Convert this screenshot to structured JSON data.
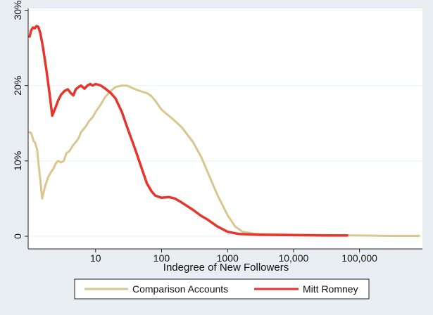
{
  "chart_data": {
    "type": "line",
    "title": "",
    "xlabel": "Indegree of New Followers",
    "ylabel": "",
    "x_scale": "log",
    "xlim": [
      0.95,
      900000
    ],
    "ylim": [
      0,
      30
    ],
    "x_ticks": [
      {
        "value": 10,
        "label": "10"
      },
      {
        "value": 100,
        "label": "100"
      },
      {
        "value": 1000,
        "label": "1000"
      },
      {
        "value": 10000,
        "label": "10,000"
      },
      {
        "value": 100000,
        "label": "100,000"
      }
    ],
    "y_ticks": [
      {
        "value": 0,
        "label": "0"
      },
      {
        "value": 10,
        "label": "10%"
      },
      {
        "value": 20,
        "label": "20%"
      },
      {
        "value": 30,
        "label": "30%"
      }
    ],
    "grid": "horizontal",
    "legend_position": "bottom",
    "colors": {
      "Comparison Accounts": "#d8c78e",
      "Mitt Romney": "#e8352c"
    },
    "series": [
      {
        "name": "Comparison Accounts",
        "points": [
          [
            1.0,
            13.8
          ],
          [
            1.05,
            13.7
          ],
          [
            1.1,
            13.2
          ],
          [
            1.15,
            12.6
          ],
          [
            1.2,
            12.5
          ],
          [
            1.3,
            11.5
          ],
          [
            1.35,
            10.0
          ],
          [
            1.45,
            7.5
          ],
          [
            1.55,
            5.0
          ],
          [
            1.7,
            6.5
          ],
          [
            1.9,
            7.8
          ],
          [
            2.1,
            8.5
          ],
          [
            2.3,
            9.0
          ],
          [
            2.5,
            9.7
          ],
          [
            2.7,
            10.0
          ],
          [
            3.0,
            9.8
          ],
          [
            3.3,
            10.0
          ],
          [
            3.6,
            11.0
          ],
          [
            4.0,
            11.3
          ],
          [
            4.5,
            12.0
          ],
          [
            5.0,
            12.5
          ],
          [
            5.5,
            13.0
          ],
          [
            6.0,
            13.8
          ],
          [
            7.0,
            14.5
          ],
          [
            8.0,
            15.3
          ],
          [
            9.0,
            15.8
          ],
          [
            10.0,
            16.5
          ],
          [
            12.0,
            17.5
          ],
          [
            14.0,
            18.5
          ],
          [
            17.0,
            19.3
          ],
          [
            20.0,
            19.8
          ],
          [
            25.0,
            20.0
          ],
          [
            30.0,
            20.0
          ],
          [
            40.0,
            19.5
          ],
          [
            50.0,
            19.2
          ],
          [
            60.0,
            19.0
          ],
          [
            70.0,
            18.6
          ],
          [
            80.0,
            18.0
          ],
          [
            100.0,
            16.8
          ],
          [
            150.0,
            15.5
          ],
          [
            200.0,
            14.5
          ],
          [
            300.0,
            12.5
          ],
          [
            400.0,
            10.5
          ],
          [
            500.0,
            8.5
          ],
          [
            700.0,
            5.5
          ],
          [
            1000.0,
            2.8
          ],
          [
            1300.0,
            1.3
          ],
          [
            1700.0,
            0.6
          ],
          [
            2500.0,
            0.35
          ],
          [
            5000.0,
            0.25
          ],
          [
            10000.0,
            0.2
          ],
          [
            30000.0,
            0.15
          ],
          [
            100000.0,
            0.1
          ],
          [
            300000.0,
            0.05
          ],
          [
            800000.0,
            0.05
          ]
        ]
      },
      {
        "name": "Mitt Romney",
        "points": [
          [
            1.0,
            26.5
          ],
          [
            1.05,
            27.3
          ],
          [
            1.12,
            27.7
          ],
          [
            1.2,
            27.6
          ],
          [
            1.27,
            27.9
          ],
          [
            1.35,
            27.8
          ],
          [
            1.45,
            27.0
          ],
          [
            1.6,
            25.0
          ],
          [
            1.8,
            22.0
          ],
          [
            2.0,
            19.0
          ],
          [
            2.2,
            16.0
          ],
          [
            2.4,
            16.8
          ],
          [
            2.7,
            18.0
          ],
          [
            3.0,
            18.8
          ],
          [
            3.4,
            19.3
          ],
          [
            3.8,
            19.5
          ],
          [
            4.2,
            19.0
          ],
          [
            4.6,
            18.7
          ],
          [
            5.0,
            19.5
          ],
          [
            5.5,
            19.8
          ],
          [
            6.0,
            20.0
          ],
          [
            6.8,
            19.6
          ],
          [
            7.5,
            20.0
          ],
          [
            8.3,
            20.2
          ],
          [
            9.0,
            20.0
          ],
          [
            10.0,
            20.2
          ],
          [
            11.0,
            20.1
          ],
          [
            12.0,
            20.0
          ],
          [
            14.0,
            19.6
          ],
          [
            17.0,
            19.0
          ],
          [
            20.0,
            18.3
          ],
          [
            25.0,
            16.5
          ],
          [
            30.0,
            14.5
          ],
          [
            40.0,
            11.5
          ],
          [
            50.0,
            9.0
          ],
          [
            60.0,
            7.0
          ],
          [
            70.0,
            6.0
          ],
          [
            80.0,
            5.4
          ],
          [
            100.0,
            5.1
          ],
          [
            130.0,
            5.2
          ],
          [
            160.0,
            5.0
          ],
          [
            200.0,
            4.5
          ],
          [
            300.0,
            3.5
          ],
          [
            400.0,
            2.7
          ],
          [
            500.0,
            2.2
          ],
          [
            700.0,
            1.3
          ],
          [
            1000.0,
            0.6
          ],
          [
            1500.0,
            0.3
          ],
          [
            3000.0,
            0.2
          ],
          [
            10000.0,
            0.15
          ],
          [
            30000.0,
            0.1
          ],
          [
            65000.0,
            0.1
          ]
        ]
      }
    ]
  }
}
